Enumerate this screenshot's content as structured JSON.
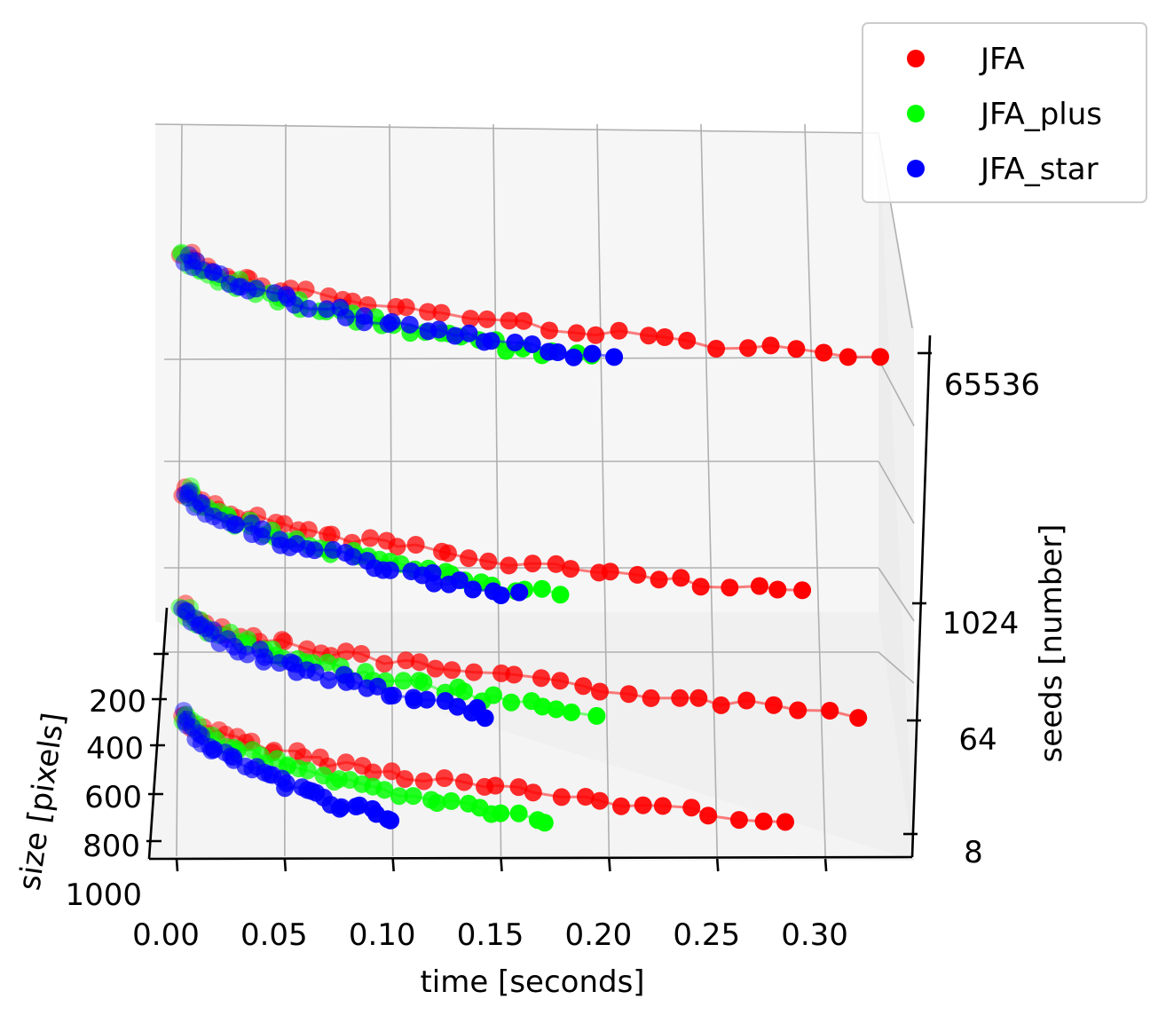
{
  "chart_data": {
    "type": "scatter",
    "subtype": "3d-scatter-with-lines",
    "title": "",
    "xlabel": "time [seconds]",
    "ylabel": "size [pixels]",
    "zlabel": "seeds [number]",
    "xlim": [
      0.0,
      0.33
    ],
    "ylim": [
      0,
      1000
    ],
    "x_ticks": [
      "0.00",
      "0.05",
      "0.10",
      "0.15",
      "0.20",
      "0.25",
      "0.30"
    ],
    "y_ticks": [
      "200",
      "400",
      "600",
      "800",
      "1000"
    ],
    "z_ticks": [
      "8",
      "64",
      "1024",
      "65536"
    ],
    "z_levels": [
      8,
      64,
      1024,
      65536
    ],
    "legend_position": "top-right",
    "series": [
      {
        "name": "JFA",
        "color": "#ff0000",
        "levels": [
          {
            "seeds": 8,
            "end_time": 0.28
          },
          {
            "seeds": 64,
            "end_time": 0.315
          },
          {
            "seeds": 1024,
            "end_time": 0.29
          },
          {
            "seeds": 65536,
            "end_time": 0.325
          }
        ]
      },
      {
        "name": "JFA_plus",
        "color": "#00ff00",
        "levels": [
          {
            "seeds": 8,
            "end_time": 0.172
          },
          {
            "seeds": 64,
            "end_time": 0.193
          },
          {
            "seeds": 1024,
            "end_time": 0.175
          },
          {
            "seeds": 65536,
            "end_time": 0.19
          }
        ]
      },
      {
        "name": "JFA_star",
        "color": "#0000ff",
        "levels": [
          {
            "seeds": 8,
            "end_time": 0.1
          },
          {
            "seeds": 64,
            "end_time": 0.145
          },
          {
            "seeds": 1024,
            "end_time": 0.157
          },
          {
            "seeds": 65536,
            "end_time": 0.2
          }
        ]
      }
    ]
  }
}
